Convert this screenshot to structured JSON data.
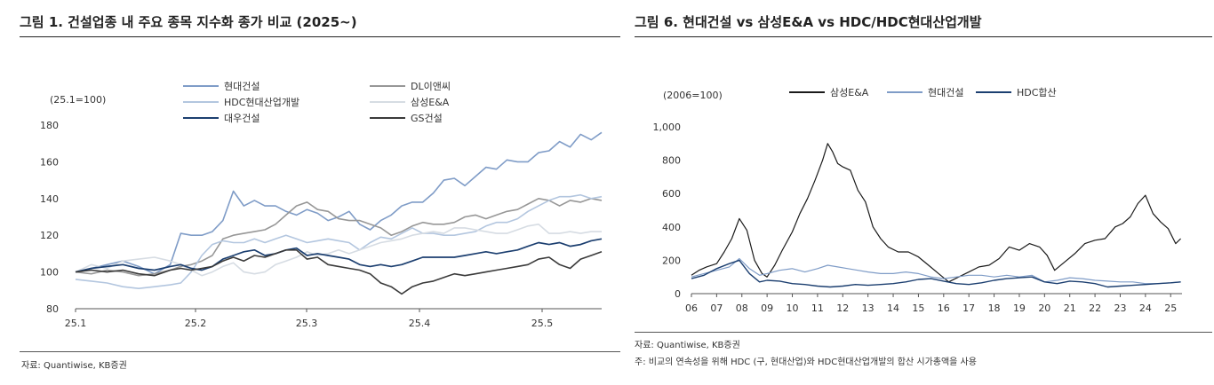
{
  "left_figure": {
    "title": "그림 1. 건설업종 내 주요 종목 지수화 종가 비교 (2025~)",
    "source": "자료: Quantiwise, KB증권"
  },
  "right_figure": {
    "title": "그림 6. 현대건설 vs 삼성E&A vs HDC/HDC현대산업개발",
    "source": "자료: Quantiwise, KB증권",
    "note": "주: 비교의 연속성을 위해 HDC (구, 현대산업)와 HDC현대산업개발의 합산 시가총액을 사용"
  },
  "chart_data": [
    {
      "type": "line",
      "unit_label": "(25.1=100)",
      "x_ticks": [
        "25.1",
        "25.2",
        "25.3",
        "25.4",
        "25.5"
      ],
      "ylim": [
        80,
        180
      ],
      "y_ticks": [
        "80",
        "100",
        "120",
        "140",
        "160",
        "180"
      ],
      "grid": false,
      "legend": "top, two columns",
      "series": [
        {
          "name": "현대건설",
          "color": "#7f9cc7",
          "width": 1.6,
          "x": [
            0,
            3,
            6,
            9,
            12,
            15,
            18,
            20,
            22,
            24,
            26,
            28,
            30,
            32,
            34,
            36,
            38,
            40,
            42,
            44,
            46,
            48,
            50,
            52,
            54,
            56,
            58,
            60,
            62,
            64,
            66,
            68,
            70,
            72,
            74,
            76,
            78,
            80,
            82,
            84,
            86,
            88,
            90,
            92,
            94,
            96,
            98,
            100
          ],
          "values": [
            100,
            102,
            104,
            106,
            103,
            99,
            104,
            121,
            120,
            120,
            122,
            128,
            144,
            136,
            139,
            136,
            136,
            133,
            131,
            134,
            132,
            128,
            130,
            133,
            126,
            123,
            128,
            131,
            136,
            138,
            138,
            143,
            150,
            151,
            147,
            152,
            157,
            156,
            161,
            160,
            160,
            165,
            166,
            171,
            168,
            175,
            172,
            176
          ]
        },
        {
          "name": "DL이앤씨",
          "color": "#979797",
          "width": 1.6,
          "x": [
            0,
            3,
            6,
            9,
            12,
            15,
            18,
            20,
            22,
            24,
            26,
            28,
            30,
            32,
            34,
            36,
            38,
            40,
            42,
            44,
            46,
            48,
            50,
            52,
            54,
            56,
            58,
            60,
            62,
            64,
            66,
            68,
            70,
            72,
            74,
            76,
            78,
            80,
            82,
            84,
            86,
            88,
            90,
            92,
            94,
            96,
            98,
            100
          ],
          "values": [
            100,
            99,
            101,
            100,
            98,
            99,
            101,
            103,
            104,
            106,
            109,
            118,
            120,
            121,
            122,
            123,
            126,
            131,
            136,
            138,
            134,
            133,
            129,
            128,
            128,
            126,
            124,
            120,
            122,
            125,
            127,
            126,
            126,
            127,
            130,
            131,
            129,
            131,
            133,
            134,
            137,
            140,
            139,
            136,
            139,
            138,
            140,
            139
          ]
        },
        {
          "name": "HDC현대산업개발",
          "color": "#b3c6df",
          "width": 1.6,
          "x": [
            0,
            3,
            6,
            9,
            12,
            15,
            18,
            20,
            22,
            24,
            26,
            28,
            30,
            32,
            34,
            36,
            38,
            40,
            42,
            44,
            46,
            48,
            50,
            52,
            54,
            56,
            58,
            60,
            62,
            64,
            66,
            68,
            70,
            72,
            74,
            76,
            78,
            80,
            82,
            84,
            86,
            88,
            90,
            92,
            94,
            96,
            98,
            100
          ],
          "values": [
            96,
            95,
            94,
            92,
            91,
            92,
            93,
            94,
            100,
            109,
            115,
            117,
            116,
            116,
            118,
            116,
            118,
            120,
            118,
            116,
            117,
            118,
            117,
            116,
            112,
            116,
            119,
            118,
            121,
            124,
            121,
            121,
            120,
            120,
            121,
            122,
            125,
            127,
            127,
            129,
            133,
            136,
            139,
            141,
            141,
            142,
            140,
            141
          ]
        },
        {
          "name": "삼성E&A",
          "color": "#d6dce3",
          "width": 1.6,
          "x": [
            0,
            3,
            6,
            9,
            12,
            15,
            18,
            20,
            22,
            24,
            26,
            28,
            30,
            32,
            34,
            36,
            38,
            40,
            42,
            44,
            46,
            48,
            50,
            52,
            54,
            56,
            58,
            60,
            62,
            64,
            66,
            68,
            70,
            72,
            74,
            76,
            78,
            80,
            82,
            84,
            86,
            88,
            90,
            92,
            94,
            96,
            98,
            100
          ],
          "values": [
            100,
            104,
            102,
            106,
            107,
            108,
            106,
            104,
            101,
            98,
            100,
            103,
            105,
            100,
            99,
            100,
            104,
            106,
            108,
            111,
            109,
            110,
            112,
            110,
            112,
            114,
            116,
            117,
            118,
            120,
            121,
            122,
            121,
            124,
            124,
            123,
            122,
            121,
            121,
            123,
            125,
            126,
            121,
            121,
            122,
            121,
            122,
            122
          ]
        },
        {
          "name": "대우건설",
          "color": "#1c3f70",
          "width": 1.7,
          "x": [
            0,
            3,
            6,
            9,
            12,
            15,
            18,
            20,
            22,
            24,
            26,
            28,
            30,
            32,
            34,
            36,
            38,
            40,
            42,
            44,
            46,
            48,
            50,
            52,
            54,
            56,
            58,
            60,
            62,
            64,
            66,
            68,
            70,
            72,
            74,
            76,
            78,
            80,
            82,
            84,
            86,
            88,
            90,
            92,
            94,
            96,
            98,
            100
          ],
          "values": [
            100,
            102,
            103,
            104,
            102,
            101,
            103,
            104,
            102,
            101,
            103,
            107,
            109,
            111,
            112,
            109,
            110,
            112,
            113,
            109,
            110,
            109,
            108,
            107,
            104,
            103,
            104,
            103,
            104,
            106,
            108,
            108,
            108,
            108,
            109,
            110,
            111,
            110,
            111,
            112,
            114,
            116,
            115,
            116,
            114,
            115,
            117,
            118
          ]
        },
        {
          "name": "GS건설",
          "color": "#3a3a3a",
          "width": 1.6,
          "x": [
            0,
            3,
            6,
            9,
            12,
            15,
            18,
            20,
            22,
            24,
            26,
            28,
            30,
            32,
            34,
            36,
            38,
            40,
            42,
            44,
            46,
            48,
            50,
            52,
            54,
            56,
            58,
            60,
            62,
            64,
            66,
            68,
            70,
            72,
            74,
            76,
            78,
            80,
            82,
            84,
            86,
            88,
            90,
            92,
            94,
            96,
            98,
            100
          ],
          "values": [
            100,
            101,
            100,
            101,
            99,
            98,
            101,
            102,
            101,
            102,
            103,
            106,
            108,
            106,
            109,
            108,
            110,
            112,
            112,
            107,
            108,
            104,
            103,
            102,
            101,
            99,
            94,
            92,
            88,
            92,
            94,
            95,
            97,
            99,
            98,
            99,
            100,
            101,
            102,
            103,
            104,
            107,
            108,
            104,
            102,
            107,
            109,
            111
          ]
        }
      ]
    },
    {
      "type": "line",
      "unit_label": "(2006=100)",
      "x_ticks": [
        "06",
        "07",
        "08",
        "09",
        "10",
        "11",
        "12",
        "13",
        "14",
        "15",
        "16",
        "17",
        "18",
        "19",
        "20",
        "21",
        "22",
        "23",
        "24",
        "25"
      ],
      "ylim": [
        0,
        1000
      ],
      "y_ticks": [
        "0",
        "200",
        "400",
        "600",
        "800",
        "1,000"
      ],
      "grid": false,
      "legend": "top, one row",
      "series": [
        {
          "name": "삼성E&A",
          "color": "#1a1a1a",
          "width": 1.2,
          "x": [
            2006.0,
            2006.3,
            2006.6,
            2007.0,
            2007.3,
            2007.6,
            2007.9,
            2008.2,
            2008.5,
            2008.8,
            2009.0,
            2009.3,
            2009.6,
            2010.0,
            2010.3,
            2010.6,
            2010.9,
            2011.2,
            2011.4,
            2011.6,
            2011.8,
            2012.0,
            2012.3,
            2012.6,
            2012.9,
            2013.2,
            2013.5,
            2013.8,
            2014.2,
            2014.6,
            2015.0,
            2015.4,
            2015.8,
            2016.2,
            2016.6,
            2017.0,
            2017.4,
            2017.8,
            2018.2,
            2018.6,
            2019.0,
            2019.4,
            2019.8,
            2020.1,
            2020.4,
            2020.8,
            2021.2,
            2021.6,
            2022.0,
            2022.4,
            2022.8,
            2023.1,
            2023.4,
            2023.7,
            2024.0,
            2024.3,
            2024.6,
            2024.9,
            2025.2,
            2025.4
          ],
          "values": [
            110,
            140,
            160,
            180,
            250,
            330,
            450,
            380,
            200,
            120,
            100,
            170,
            260,
            370,
            480,
            570,
            680,
            800,
            900,
            850,
            780,
            760,
            740,
            620,
            550,
            400,
            330,
            280,
            250,
            250,
            220,
            170,
            120,
            70,
            100,
            130,
            160,
            170,
            210,
            280,
            260,
            300,
            280,
            230,
            140,
            190,
            240,
            300,
            320,
            330,
            400,
            420,
            460,
            540,
            590,
            480,
            430,
            390,
            300,
            330
          ]
        },
        {
          "name": "현대건설",
          "color": "#7f9cc7",
          "width": 1.2,
          "x": [
            2006.0,
            2006.5,
            2007.0,
            2007.5,
            2007.9,
            2008.3,
            2008.7,
            2009.0,
            2009.5,
            2010.0,
            2010.5,
            2011.0,
            2011.4,
            2011.8,
            2012.2,
            2012.6,
            2013.0,
            2013.5,
            2014.0,
            2014.5,
            2015.0,
            2015.5,
            2016.0,
            2016.5,
            2017.0,
            2017.5,
            2018.0,
            2018.5,
            2019.0,
            2019.5,
            2020.0,
            2020.5,
            2021.0,
            2021.5,
            2022.0,
            2022.5,
            2023.0,
            2023.5,
            2024.0,
            2024.5,
            2025.0,
            2025.4
          ],
          "values": [
            100,
            120,
            140,
            160,
            210,
            150,
            110,
            120,
            140,
            150,
            130,
            150,
            170,
            160,
            150,
            140,
            130,
            120,
            120,
            130,
            120,
            100,
            90,
            100,
            110,
            110,
            100,
            110,
            100,
            110,
            70,
            80,
            95,
            90,
            80,
            75,
            70,
            70,
            60,
            60,
            65,
            70
          ]
        },
        {
          "name": "HDC합산",
          "color": "#1c3f70",
          "width": 1.4,
          "x": [
            2006.0,
            2006.5,
            2007.0,
            2007.5,
            2007.9,
            2008.3,
            2008.7,
            2009.0,
            2009.5,
            2010.0,
            2010.5,
            2011.0,
            2011.5,
            2012.0,
            2012.5,
            2013.0,
            2013.5,
            2014.0,
            2014.5,
            2015.0,
            2015.5,
            2016.0,
            2016.5,
            2017.0,
            2017.5,
            2018.0,
            2018.5,
            2019.0,
            2019.5,
            2020.0,
            2020.5,
            2021.0,
            2021.5,
            2022.0,
            2022.5,
            2023.0,
            2023.5,
            2024.0,
            2024.5,
            2025.0,
            2025.4
          ],
          "values": [
            90,
            110,
            150,
            180,
            200,
            120,
            70,
            80,
            75,
            60,
            55,
            45,
            40,
            45,
            55,
            50,
            55,
            60,
            70,
            85,
            90,
            75,
            60,
            55,
            65,
            80,
            90,
            95,
            100,
            70,
            60,
            75,
            70,
            60,
            40,
            45,
            50,
            55,
            60,
            65,
            70
          ]
        }
      ]
    }
  ]
}
